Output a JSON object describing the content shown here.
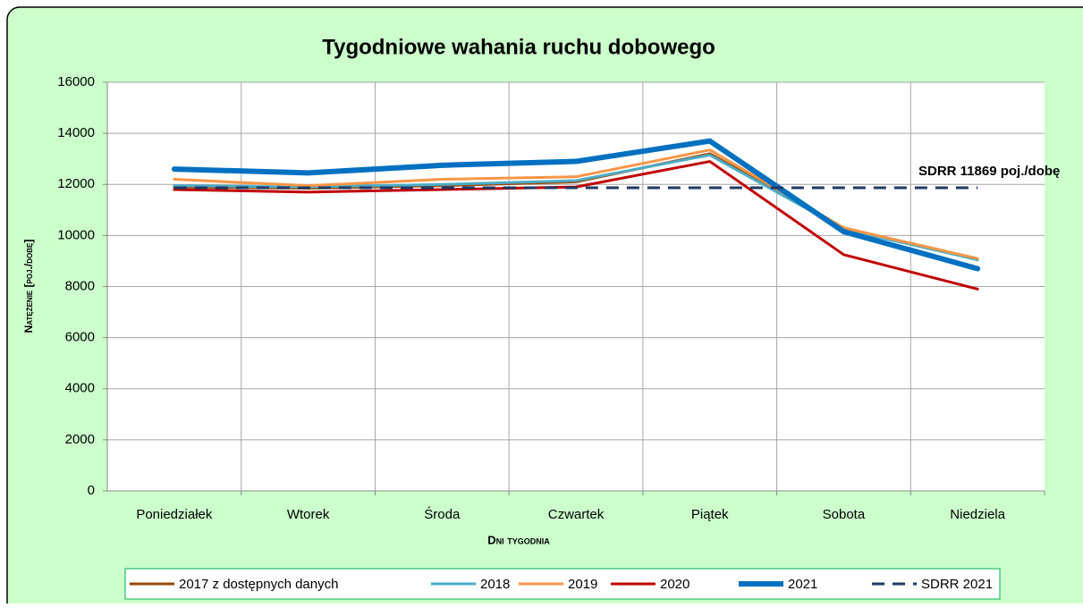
{
  "chart_data": {
    "type": "line",
    "title": "Tygodniowe wahania ruchu dobowego",
    "x_label": "Dni tygodnia",
    "y_label": "Natężenie [poj./dobę]",
    "annotation": "SDRR 11869  poj./dobę",
    "categories": [
      "Poniedziałek",
      "Wtorek",
      "Środa",
      "Czwartek",
      "Piątek",
      "Sobota",
      "Niedziela"
    ],
    "series": [
      {
        "name": "2017  z dostępnych danych",
        "color": "#984807",
        "width": 3,
        "dashed": false,
        "values": [
          11900,
          11850,
          11950,
          12100,
          13200,
          10300,
          9050
        ]
      },
      {
        "name": "2018",
        "color": "#4bacc6",
        "width": 3,
        "dashed": false,
        "values": [
          11950,
          11900,
          12000,
          12150,
          13150,
          10250,
          9050
        ]
      },
      {
        "name": "2019",
        "color": "#f79646",
        "width": 3,
        "dashed": false,
        "values": [
          12200,
          11950,
          12200,
          12300,
          13350,
          10300,
          9100
        ]
      },
      {
        "name": "2020",
        "color": "#c00000",
        "width": 3,
        "dashed": false,
        "values": [
          11800,
          11700,
          11800,
          11900,
          12900,
          9250,
          7900
        ]
      },
      {
        "name": "2021",
        "color": "#0070c0",
        "width": 6,
        "dashed": false,
        "values": [
          12600,
          12450,
          12750,
          12900,
          13700,
          10150,
          8700
        ]
      },
      {
        "name": "SDRR 2021",
        "color": "#1f3864",
        "width": 3,
        "dashed": true,
        "values": [
          11869,
          11869,
          11869,
          11869,
          11869,
          11869,
          11869
        ]
      }
    ],
    "ylim": [
      0,
      16000
    ],
    "yticks": [
      0,
      2000,
      4000,
      6000,
      8000,
      10000,
      12000,
      14000,
      16000
    ],
    "grid": true
  }
}
